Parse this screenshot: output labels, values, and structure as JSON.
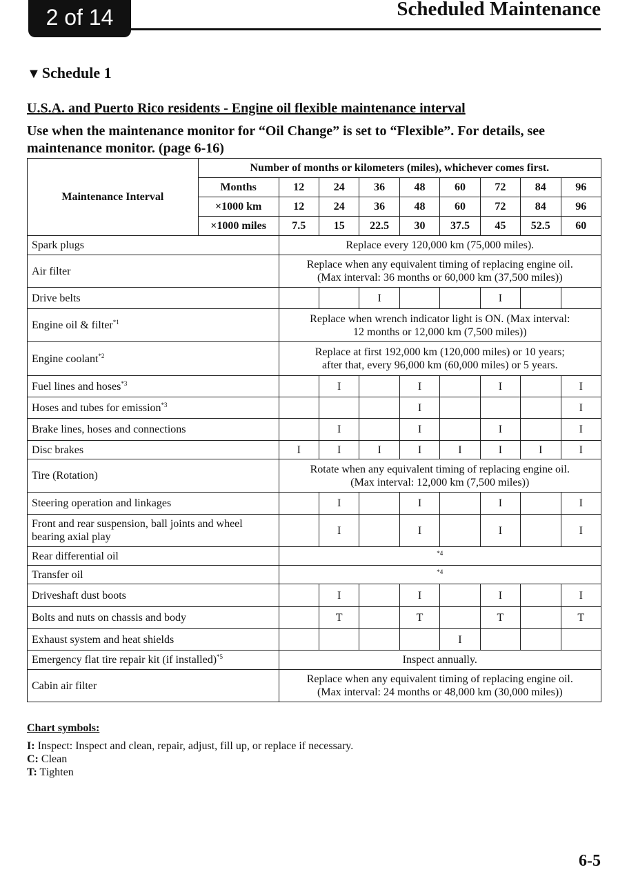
{
  "header": {
    "page_badge": "2 of 14",
    "section_title": "Scheduled Maintenance"
  },
  "schedule_heading": "Schedule 1",
  "subtitle": "U.S.A. and Puerto Rico residents - Engine oil flexible maintenance interval",
  "intro": "Use when the maintenance monitor for “Oil Change” is set to “Flexible”. For details, see maintenance monitor. (page 6-16)",
  "table": {
    "interval_label": "Maintenance Interval",
    "top_header": "Number of months or kilometers (miles), whichever comes first.",
    "header_rows": [
      {
        "label": "Months",
        "values": [
          "12",
          "24",
          "36",
          "48",
          "60",
          "72",
          "84",
          "96"
        ]
      },
      {
        "label": "×1000 km",
        "values": [
          "12",
          "24",
          "36",
          "48",
          "60",
          "72",
          "84",
          "96"
        ]
      },
      {
        "label": "×1000 miles",
        "values": [
          "7.5",
          "15",
          "22.5",
          "30",
          "37.5",
          "45",
          "52.5",
          "60"
        ]
      }
    ],
    "rows": [
      {
        "item": "Spark plugs",
        "note": "",
        "span": "Replace every 120,000 km (75,000 miles)."
      },
      {
        "item": "Air filter",
        "note": "",
        "span": "Replace when any equivalent timing of replacing engine oil.\n(Max interval: 36 months or 60,000 km (37,500 miles))"
      },
      {
        "item": "Drive belts",
        "note": "",
        "cells": [
          "",
          "",
          "I",
          "",
          "",
          "I",
          "",
          ""
        ]
      },
      {
        "item": "Engine oil & filter",
        "note": "*1",
        "span": "Replace when wrench indicator light is ON. (Max interval:\n12 months or 12,000 km (7,500 miles))"
      },
      {
        "item": "Engine coolant",
        "note": "*2",
        "span": "Replace at first 192,000 km (120,000 miles) or 10 years;\nafter that, every 96,000 km (60,000 miles) or 5 years."
      },
      {
        "item": "Fuel lines and hoses",
        "note": "*3",
        "cells": [
          "",
          "I",
          "",
          "I",
          "",
          "I",
          "",
          "I"
        ]
      },
      {
        "item": "Hoses and tubes for emission",
        "note": "*3",
        "cells": [
          "",
          "",
          "",
          "I",
          "",
          "",
          "",
          "I"
        ]
      },
      {
        "item": "Brake lines, hoses and connections",
        "note": "",
        "cells": [
          "",
          "I",
          "",
          "I",
          "",
          "I",
          "",
          "I"
        ]
      },
      {
        "item": "Disc brakes",
        "note": "",
        "cells": [
          "I",
          "I",
          "I",
          "I",
          "I",
          "I",
          "I",
          "I"
        ]
      },
      {
        "item": "Tire (Rotation)",
        "note": "",
        "span": "Rotate when any equivalent timing of replacing engine oil.\n(Max interval: 12,000 km (7,500 miles))"
      },
      {
        "item": "Steering operation and linkages",
        "note": "",
        "cells": [
          "",
          "I",
          "",
          "I",
          "",
          "I",
          "",
          "I"
        ]
      },
      {
        "item": "Front and rear suspension, ball joints and wheel bearing axial play",
        "note": "",
        "cells": [
          "",
          "I",
          "",
          "I",
          "",
          "I",
          "",
          "I"
        ]
      },
      {
        "item": "Rear differential oil",
        "note": "",
        "span_note": "*4"
      },
      {
        "item": "Transfer oil",
        "note": "",
        "span_note": "*4"
      },
      {
        "item": "Driveshaft dust boots",
        "note": "",
        "cells": [
          "",
          "I",
          "",
          "I",
          "",
          "I",
          "",
          "I"
        ]
      },
      {
        "item": "Bolts and nuts on chassis and body",
        "note": "",
        "cells": [
          "",
          "T",
          "",
          "T",
          "",
          "T",
          "",
          "T"
        ]
      },
      {
        "item": "Exhaust system and heat shields",
        "note": "",
        "cells": [
          "",
          "",
          "",
          "",
          "I",
          "",
          "",
          ""
        ]
      },
      {
        "item": "Emergency flat tire repair kit (if installed)",
        "note": "*5",
        "span": "Inspect annually."
      },
      {
        "item": "Cabin air filter",
        "note": "",
        "span": "Replace when any equivalent timing of replacing engine oil.\n(Max interval: 24 months or 48,000 km (30,000 miles))"
      }
    ]
  },
  "legend": {
    "title": "Chart symbols:",
    "items": [
      {
        "key": "I:",
        "text": " Inspect: Inspect and clean, repair, adjust, fill up, or replace if necessary."
      },
      {
        "key": "C:",
        "text": " Clean"
      },
      {
        "key": "T:",
        "text": " Tighten"
      }
    ]
  },
  "page_number": "6-5"
}
